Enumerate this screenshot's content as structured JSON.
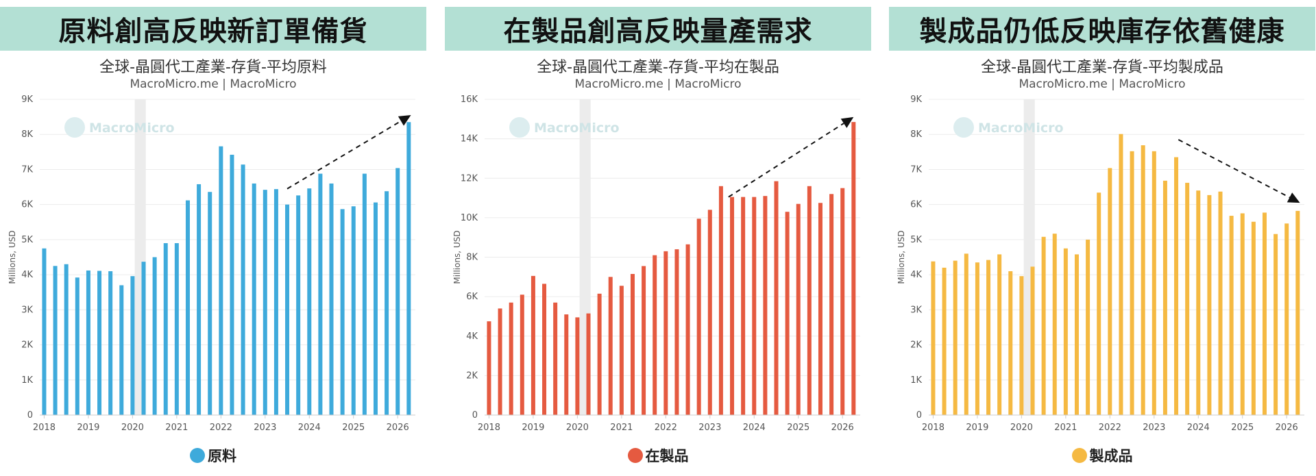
{
  "chart_data": [
    {
      "type": "bar",
      "banner": "原料創高反映新訂單備貨",
      "title": "全球-晶圓代工產業-存貨-平均原料",
      "subtitle": "MacroMicro.me | MacroMicro",
      "watermark": "MacroMicro",
      "ylabel": "Millions, USD",
      "ylim": [
        0,
        9000
      ],
      "yticks": [
        0,
        1000,
        2000,
        3000,
        4000,
        5000,
        6000,
        7000,
        8000,
        9000
      ],
      "ytick_labels": [
        "0",
        "1K",
        "2K",
        "3K",
        "4K",
        "5K",
        "6K",
        "7K",
        "8K",
        "9K"
      ],
      "xlim": [
        2017.9,
        2026.4
      ],
      "xticks": [
        2018,
        2019,
        2020,
        2021,
        2022,
        2023,
        2024,
        2025,
        2026
      ],
      "xtick_labels": [
        "2018",
        "2019",
        "2020",
        "2021",
        "2022",
        "2023",
        "2024",
        "2025",
        "2026"
      ],
      "shaded_band": [
        2020.05,
        2020.3
      ],
      "trend_arrow": {
        "from": [
          2023.5,
          6450
        ],
        "to": [
          2026.3,
          8550
        ]
      },
      "series": [
        {
          "name": "原料",
          "color": "#3eaadb",
          "x": [
            2018.0,
            2018.25,
            2018.5,
            2018.75,
            2019.0,
            2019.25,
            2019.5,
            2019.75,
            2020.0,
            2020.25,
            2020.5,
            2020.75,
            2021.0,
            2021.25,
            2021.5,
            2021.75,
            2022.0,
            2022.25,
            2022.5,
            2022.75,
            2023.0,
            2023.25,
            2023.5,
            2023.75,
            2024.0,
            2024.25,
            2024.5,
            2024.75,
            2025.0,
            2025.25,
            2025.5,
            2025.75,
            2026.0,
            2026.25
          ],
          "values": [
            4750,
            4250,
            4300,
            3920,
            4120,
            4110,
            4100,
            3700,
            3960,
            4370,
            4500,
            4900,
            4900,
            6120,
            6580,
            6360,
            7660,
            7420,
            7140,
            6600,
            6420,
            6440,
            6000,
            6260,
            6460,
            6880,
            6600,
            5870,
            5950,
            6880,
            6060,
            6380,
            7040,
            8350
          ]
        }
      ]
    },
    {
      "type": "bar",
      "banner": "在製品創高反映量產需求",
      "title": "全球-晶圓代工產業-存貨-平均在製品",
      "subtitle": "MacroMicro.me | MacroMicro",
      "watermark": "MacroMicro",
      "ylabel": "Millions, USD",
      "ylim": [
        0,
        16000
      ],
      "yticks": [
        0,
        2000,
        4000,
        6000,
        8000,
        10000,
        12000,
        14000,
        16000
      ],
      "ytick_labels": [
        "0",
        "2K",
        "4K",
        "6K",
        "8K",
        "10K",
        "12K",
        "14K",
        "16K"
      ],
      "xlim": [
        2017.9,
        2026.4
      ],
      "xticks": [
        2018,
        2019,
        2020,
        2021,
        2022,
        2023,
        2024,
        2025,
        2026
      ],
      "xtick_labels": [
        "2018",
        "2019",
        "2020",
        "2021",
        "2022",
        "2023",
        "2024",
        "2025",
        "2026"
      ],
      "shaded_band": [
        2020.05,
        2020.3
      ],
      "trend_arrow": {
        "from": [
          2023.42,
          11050
        ],
        "to": [
          2026.25,
          15100
        ]
      },
      "series": [
        {
          "name": "在製品",
          "color": "#e55a40",
          "x": [
            2018.0,
            2018.25,
            2018.5,
            2018.75,
            2019.0,
            2019.25,
            2019.5,
            2019.75,
            2020.0,
            2020.25,
            2020.5,
            2020.75,
            2021.0,
            2021.25,
            2021.5,
            2021.75,
            2022.0,
            2022.25,
            2022.5,
            2022.75,
            2023.0,
            2023.25,
            2023.5,
            2023.75,
            2024.0,
            2024.25,
            2024.5,
            2024.75,
            2025.0,
            2025.25,
            2025.5,
            2025.75,
            2026.0,
            2026.25
          ],
          "values": [
            4750,
            5400,
            5700,
            6100,
            7050,
            6650,
            5700,
            5100,
            4950,
            5150,
            6150,
            7000,
            6550,
            7150,
            7550,
            8100,
            8300,
            8400,
            8650,
            9950,
            10400,
            11600,
            11050,
            11050,
            11050,
            11100,
            11850,
            10300,
            10700,
            11600,
            10750,
            11200,
            11500,
            14850
          ]
        }
      ]
    },
    {
      "type": "bar",
      "banner": "製成品仍低反映庫存依舊健康",
      "title": "全球-晶圓代工產業-存貨-平均製成品",
      "subtitle": "MacroMicro.me | MacroMicro",
      "watermark": "MacroMicro",
      "ylabel": "Millions, USD",
      "ylim": [
        0,
        9000
      ],
      "yticks": [
        0,
        1000,
        2000,
        3000,
        4000,
        5000,
        6000,
        7000,
        8000,
        9000
      ],
      "ytick_labels": [
        "0",
        "1K",
        "2K",
        "3K",
        "4K",
        "5K",
        "6K",
        "7K",
        "8K",
        "9K"
      ],
      "xlim": [
        2017.9,
        2026.4
      ],
      "xticks": [
        2018,
        2019,
        2020,
        2021,
        2022,
        2023,
        2024,
        2025,
        2026
      ],
      "xtick_labels": [
        "2018",
        "2019",
        "2020",
        "2021",
        "2022",
        "2023",
        "2024",
        "2025",
        "2026"
      ],
      "shaded_band": [
        2020.05,
        2020.3
      ],
      "trend_arrow": {
        "from": [
          2023.55,
          7850
        ],
        "to": [
          2026.3,
          6050
        ]
      },
      "series": [
        {
          "name": "製成品",
          "color": "#f5b942",
          "x": [
            2018.0,
            2018.25,
            2018.5,
            2018.75,
            2019.0,
            2019.25,
            2019.5,
            2019.75,
            2020.0,
            2020.25,
            2020.5,
            2020.75,
            2021.0,
            2021.25,
            2021.5,
            2021.75,
            2022.0,
            2022.25,
            2022.5,
            2022.75,
            2023.0,
            2023.25,
            2023.5,
            2023.75,
            2024.0,
            2024.25,
            2024.5,
            2024.75,
            2025.0,
            2025.25,
            2025.5,
            2025.75,
            2026.0,
            2026.25
          ],
          "values": [
            4380,
            4200,
            4400,
            4600,
            4350,
            4420,
            4580,
            4100,
            3960,
            4230,
            5080,
            5170,
            4750,
            4580,
            5000,
            6340,
            7040,
            8010,
            7520,
            7690,
            7520,
            6680,
            7350,
            6620,
            6400,
            6270,
            6370,
            5680,
            5750,
            5510,
            5770,
            5160,
            5460,
            5820
          ]
        }
      ]
    }
  ]
}
